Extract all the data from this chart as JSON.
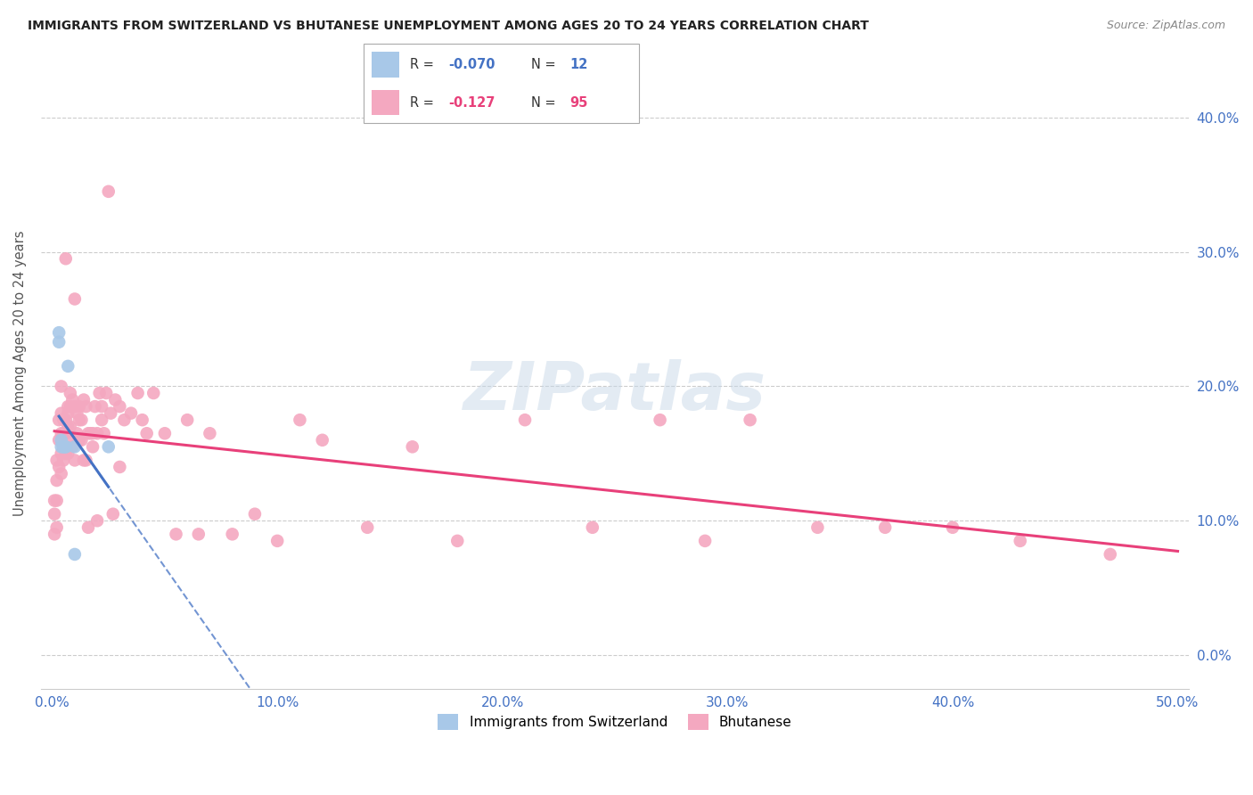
{
  "title": "IMMIGRANTS FROM SWITZERLAND VS BHUTANESE UNEMPLOYMENT AMONG AGES 20 TO 24 YEARS CORRELATION CHART",
  "source": "Source: ZipAtlas.com",
  "ylabel": "Unemployment Among Ages 20 to 24 years",
  "xlim": [
    -0.005,
    0.505
  ],
  "ylim": [
    -0.025,
    0.445
  ],
  "xtick_vals": [
    0.0,
    0.1,
    0.2,
    0.3,
    0.4,
    0.5
  ],
  "xtick_labels": [
    "0.0%",
    "10.0%",
    "20.0%",
    "30.0%",
    "40.0%",
    "50.0%"
  ],
  "ytick_vals": [
    0.0,
    0.1,
    0.2,
    0.3,
    0.4
  ],
  "ytick_labels": [
    "0.0%",
    "10.0%",
    "20.0%",
    "30.0%",
    "40.0%"
  ],
  "swiss_R": -0.07,
  "swiss_N": 12,
  "bhutan_R": -0.127,
  "bhutan_N": 95,
  "swiss_color": "#a8c8e8",
  "bhutan_color": "#f4a8c0",
  "swiss_line_color": "#4472c4",
  "bhutan_line_color": "#e8407a",
  "watermark": "ZIPatlas",
  "swiss_x": [
    0.003,
    0.003,
    0.004,
    0.004,
    0.005,
    0.005,
    0.006,
    0.006,
    0.007,
    0.01,
    0.01,
    0.025
  ],
  "swiss_y": [
    0.233,
    0.24,
    0.16,
    0.155,
    0.155,
    0.155,
    0.155,
    0.155,
    0.215,
    0.075,
    0.155,
    0.155
  ],
  "bhutan_x": [
    0.001,
    0.001,
    0.001,
    0.002,
    0.002,
    0.002,
    0.002,
    0.003,
    0.003,
    0.003,
    0.004,
    0.004,
    0.004,
    0.004,
    0.004,
    0.005,
    0.005,
    0.005,
    0.005,
    0.006,
    0.006,
    0.006,
    0.006,
    0.007,
    0.007,
    0.007,
    0.007,
    0.007,
    0.008,
    0.008,
    0.008,
    0.009,
    0.009,
    0.01,
    0.01,
    0.01,
    0.011,
    0.011,
    0.012,
    0.012,
    0.012,
    0.013,
    0.013,
    0.014,
    0.014,
    0.015,
    0.015,
    0.016,
    0.016,
    0.017,
    0.018,
    0.018,
    0.019,
    0.02,
    0.02,
    0.021,
    0.022,
    0.022,
    0.023,
    0.024,
    0.025,
    0.026,
    0.027,
    0.028,
    0.03,
    0.03,
    0.032,
    0.035,
    0.038,
    0.04,
    0.042,
    0.045,
    0.05,
    0.055,
    0.06,
    0.065,
    0.07,
    0.08,
    0.09,
    0.1,
    0.11,
    0.12,
    0.14,
    0.16,
    0.18,
    0.21,
    0.24,
    0.27,
    0.29,
    0.31,
    0.34,
    0.37,
    0.4,
    0.43,
    0.47
  ],
  "bhutan_y": [
    0.115,
    0.105,
    0.09,
    0.145,
    0.13,
    0.115,
    0.095,
    0.175,
    0.16,
    0.14,
    0.2,
    0.18,
    0.165,
    0.15,
    0.135,
    0.175,
    0.165,
    0.155,
    0.145,
    0.295,
    0.175,
    0.165,
    0.15,
    0.185,
    0.18,
    0.17,
    0.16,
    0.15,
    0.195,
    0.185,
    0.17,
    0.19,
    0.155,
    0.265,
    0.185,
    0.145,
    0.18,
    0.165,
    0.185,
    0.175,
    0.16,
    0.175,
    0.16,
    0.19,
    0.145,
    0.185,
    0.145,
    0.165,
    0.095,
    0.165,
    0.165,
    0.155,
    0.185,
    0.165,
    0.1,
    0.195,
    0.185,
    0.175,
    0.165,
    0.195,
    0.345,
    0.18,
    0.105,
    0.19,
    0.185,
    0.14,
    0.175,
    0.18,
    0.195,
    0.175,
    0.165,
    0.195,
    0.165,
    0.09,
    0.175,
    0.09,
    0.165,
    0.09,
    0.105,
    0.085,
    0.175,
    0.16,
    0.095,
    0.155,
    0.085,
    0.175,
    0.095,
    0.175,
    0.085,
    0.175,
    0.095,
    0.095,
    0.095,
    0.085,
    0.075
  ]
}
